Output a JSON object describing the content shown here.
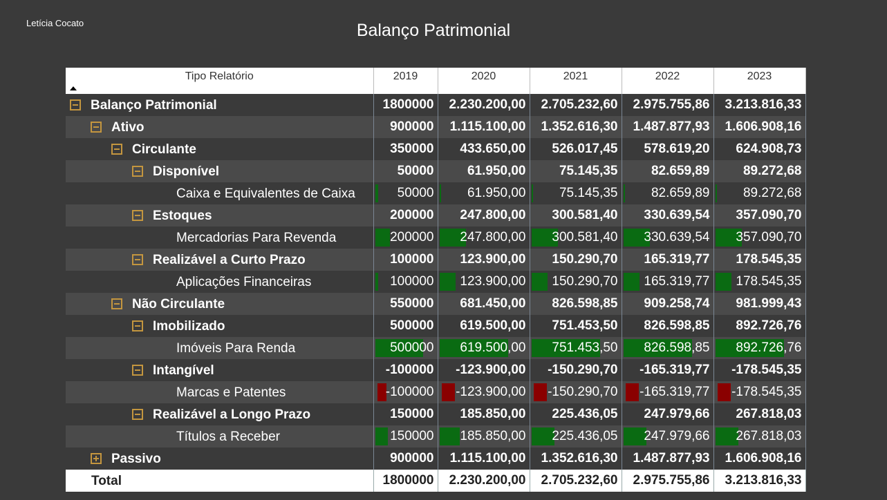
{
  "author": "Letícia Cocato",
  "title": "Balanço Patrimonial",
  "header": {
    "label": "Tipo Relatório",
    "years": [
      "2019",
      "2020",
      "2021",
      "2022",
      "2023"
    ]
  },
  "rows": [
    {
      "label": "Balanço Patrimonial",
      "level": 0,
      "toggle": "minus",
      "bold": true,
      "values": [
        "1800000",
        "2.230.200,00",
        "2.705.232,60",
        "2.975.755,86",
        "3.213.816,33"
      ]
    },
    {
      "label": "Ativo",
      "level": 1,
      "toggle": "minus",
      "bold": true,
      "values": [
        "900000",
        "1.115.100,00",
        "1.352.616,30",
        "1.487.877,93",
        "1.606.908,16"
      ]
    },
    {
      "label": "Circulante",
      "level": 2,
      "toggle": "minus",
      "bold": true,
      "values": [
        "350000",
        "433.650,00",
        "526.017,45",
        "578.619,20",
        "624.908,73"
      ]
    },
    {
      "label": "Disponível",
      "level": 3,
      "toggle": "minus",
      "bold": true,
      "values": [
        "50000",
        "61.950,00",
        "75.145,35",
        "82.659,89",
        "89.272,68"
      ]
    },
    {
      "label": "Caixa e Equivalentes de Caixa",
      "level": 4,
      "toggle": null,
      "bold": false,
      "values": [
        "50000",
        "61.950,00",
        "75.145,35",
        "82.659,89",
        "89.272,68"
      ],
      "bars": [
        0.05,
        0.02,
        0.02,
        0.02,
        0.02
      ]
    },
    {
      "label": "Estoques",
      "level": 3,
      "toggle": "minus",
      "bold": true,
      "values": [
        "200000",
        "247.800,00",
        "300.581,40",
        "330.639,54",
        "357.090,70"
      ]
    },
    {
      "label": "Mercadorias Para Revenda",
      "level": 4,
      "toggle": null,
      "bold": false,
      "values": [
        "200000",
        "247.800,00",
        "300.581,40",
        "330.639,54",
        "357.090,70"
      ],
      "bars": [
        0.23,
        0.29,
        0.29,
        0.29,
        0.29
      ]
    },
    {
      "label": "Realizável a Curto Prazo",
      "level": 3,
      "toggle": "minus",
      "bold": true,
      "values": [
        "100000",
        "123.900,00",
        "150.290,70",
        "165.319,77",
        "178.545,35"
      ]
    },
    {
      "label": "Aplicações Financeiras",
      "level": 4,
      "toggle": null,
      "bold": false,
      "values": [
        "100000",
        "123.900,00",
        "150.290,70",
        "165.319,77",
        "178.545,35"
      ],
      "bars": [
        0.05,
        0.18,
        0.18,
        0.18,
        0.18
      ]
    },
    {
      "label": "Não Circulante",
      "level": 2,
      "toggle": "minus",
      "bold": true,
      "values": [
        "550000",
        "681.450,00",
        "826.598,85",
        "909.258,74",
        "981.999,43"
      ]
    },
    {
      "label": "Imobilizado",
      "level": 3,
      "toggle": "minus",
      "bold": true,
      "values": [
        "500000",
        "619.500,00",
        "751.453,50",
        "826.598,85",
        "892.726,76"
      ]
    },
    {
      "label": "Imóveis Para Renda",
      "level": 4,
      "toggle": null,
      "bold": false,
      "values": [
        "500000",
        "619.500,00",
        "751.453,50",
        "826.598,85",
        "892.726,76"
      ],
      "bars": [
        0.75,
        0.75,
        0.75,
        0.75,
        0.75
      ]
    },
    {
      "label": "Intangível",
      "level": 3,
      "toggle": "minus",
      "bold": true,
      "values": [
        "-100000",
        "-123.900,00",
        "-150.290,70",
        "-165.319,77",
        "-178.545,35"
      ]
    },
    {
      "label": "Marcas e Patentes",
      "level": 4,
      "toggle": null,
      "bold": false,
      "values": [
        "-100000",
        "-123.900,00",
        "-150.290,70",
        "-165.319,77",
        "-178.545,35"
      ],
      "bars": [
        -0.15,
        -0.15,
        -0.15,
        -0.15,
        -0.15
      ]
    },
    {
      "label": "Realizável a Longo Prazo",
      "level": 3,
      "toggle": "minus",
      "bold": true,
      "values": [
        "150000",
        "185.850,00",
        "225.436,05",
        "247.979,66",
        "267.818,03"
      ]
    },
    {
      "label": "Títulos a Receber",
      "level": 4,
      "toggle": null,
      "bold": false,
      "values": [
        "150000",
        "185.850,00",
        "225.436,05",
        "247.979,66",
        "267.818,03"
      ],
      "bars": [
        0.2,
        0.22,
        0.25,
        0.25,
        0.25
      ]
    },
    {
      "label": "Passivo",
      "level": 1,
      "toggle": "plus",
      "bold": true,
      "values": [
        "900000",
        "1.115.100,00",
        "1.352.616,30",
        "1.487.877,93",
        "1.606.908,16"
      ]
    }
  ],
  "total": {
    "label": "Total",
    "values": [
      "1800000",
      "2.230.200,00",
      "2.705.232,60",
      "2.975.755,86",
      "3.213.816,33"
    ]
  },
  "colors": {
    "positive_bar": "#0a6b12",
    "negative_bar": "#8a0000",
    "toggle": "#c4963f"
  }
}
